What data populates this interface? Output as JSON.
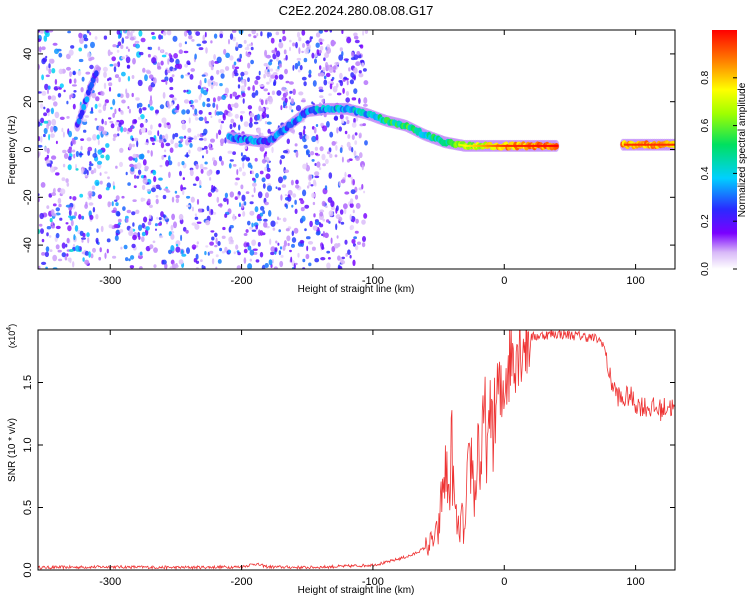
{
  "title": "C2E2.2024.280.08.08.G17",
  "chart_data": [
    {
      "type": "heatmap",
      "name": "spectrogram",
      "xlabel": "Height of straight line (km)",
      "ylabel": "Frequency (Hz)",
      "xlim": [
        -355,
        130
      ],
      "ylim": [
        -50,
        50
      ],
      "xticks": [
        -300,
        -200,
        -100,
        0,
        100
      ],
      "xtick_labels": [
        "-300",
        "-200",
        "-100",
        "0",
        "100"
      ],
      "yticks": [
        -40,
        -20,
        0,
        20,
        40
      ],
      "ytick_labels": [
        "-40",
        "-20",
        "0",
        "20",
        "40"
      ],
      "noise_region_x": [
        -355,
        -105
      ],
      "ridge": [
        {
          "x": -320,
          "y": 18,
          "amp": 0.35
        },
        {
          "x": -315,
          "y": 26,
          "amp": 0.35
        },
        {
          "x": -310,
          "y": 33,
          "amp": 0.4
        },
        {
          "x": -210,
          "y": 5,
          "amp": 0.35
        },
        {
          "x": -195,
          "y": 4,
          "amp": 0.4
        },
        {
          "x": -180,
          "y": 3,
          "amp": 0.35
        },
        {
          "x": -150,
          "y": 16,
          "amp": 0.4
        },
        {
          "x": -135,
          "y": 17,
          "amp": 0.45
        },
        {
          "x": -120,
          "y": 17,
          "amp": 0.45
        },
        {
          "x": -105,
          "y": 15,
          "amp": 0.45
        },
        {
          "x": -90,
          "y": 12,
          "amp": 0.55
        },
        {
          "x": -75,
          "y": 10,
          "amp": 0.6
        },
        {
          "x": -60,
          "y": 6,
          "amp": 0.5
        },
        {
          "x": -45,
          "y": 3,
          "amp": 0.6
        },
        {
          "x": -30,
          "y": 1.5,
          "amp": 0.7
        },
        {
          "x": 0,
          "y": 1.5,
          "amp": 0.9
        },
        {
          "x": 40,
          "y": 1.5,
          "amp": 0.95
        },
        {
          "x": 90,
          "y": 2,
          "amp": 0.9
        },
        {
          "x": 130,
          "y": 2,
          "amp": 0.9
        }
      ]
    },
    {
      "type": "line",
      "name": "snr",
      "color": "#ee3333",
      "xlabel": "Height of straight line (km)",
      "ylabel": "SNR (10 * v/v)",
      "scale_label": "(x10",
      "scale_exp": "4",
      "scale_close": ")",
      "xlim": [
        -355,
        130
      ],
      "ylim": [
        0,
        1.92
      ],
      "xticks": [
        -300,
        -200,
        -100,
        0,
        100
      ],
      "xtick_labels": [
        "-300",
        "-200",
        "-100",
        "0",
        "100"
      ],
      "yticks": [
        0,
        0.5,
        1.0,
        1.5
      ],
      "ytick_labels": [
        "0.0",
        "0.5",
        "1.0",
        "1.5"
      ],
      "series": [
        {
          "name": "SNR",
          "x": [
            -355,
            -300,
            -250,
            -200,
            -190,
            -180,
            -150,
            -120,
            -100,
            -90,
            -80,
            -70,
            -60,
            -55,
            -50,
            -48,
            -45,
            -42,
            -40,
            -38,
            -35,
            -32,
            -30,
            -28,
            -25,
            -22,
            -20,
            -18,
            -15,
            -12,
            -10,
            -8,
            -5,
            -2,
            0,
            5,
            10,
            20,
            30,
            40,
            50,
            60,
            70,
            75,
            78,
            80,
            85,
            90,
            95,
            100,
            110,
            120,
            125,
            130
          ],
          "y": [
            0.02,
            0.025,
            0.02,
            0.025,
            0.05,
            0.025,
            0.02,
            0.03,
            0.04,
            0.06,
            0.09,
            0.12,
            0.18,
            0.22,
            0.3,
            0.55,
            0.8,
            0.6,
            1.0,
            0.5,
            0.3,
            0.4,
            0.25,
            0.7,
            0.9,
            0.55,
            1.1,
            0.75,
            1.25,
            0.9,
            1.35,
            1.1,
            1.45,
            1.3,
            1.55,
            1.72,
            1.82,
            1.86,
            1.88,
            1.89,
            1.88,
            1.87,
            1.85,
            1.82,
            1.7,
            1.55,
            1.42,
            1.35,
            1.4,
            1.33,
            1.3,
            1.28,
            1.32,
            1.28
          ]
        }
      ]
    },
    {
      "type": "colorbar",
      "name": "amplitude-colorbar",
      "label": "Normalized spectral amplitude",
      "range": [
        0,
        1
      ],
      "ticks": [
        0,
        0.2,
        0.4,
        0.6,
        0.8
      ],
      "tick_labels": [
        "0.0",
        "0.2",
        "0.4",
        "0.6",
        "0.8"
      ]
    }
  ]
}
